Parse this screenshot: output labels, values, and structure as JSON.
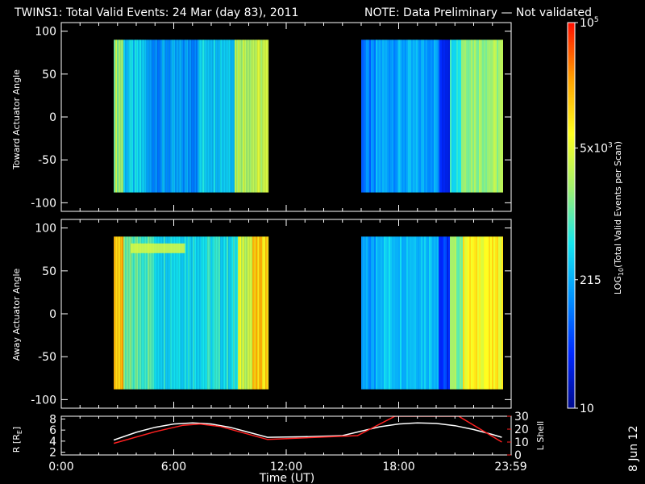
{
  "title": {
    "main": "TWINS1: Total Valid Events: 24 Mar (day  83), 2011",
    "note": "NOTE: Data Preliminary — Not validated",
    "note_color": "#ff2020"
  },
  "stamp": "8 Jun 12",
  "chart_data": [
    {
      "type": "heatmap",
      "name": "toward-panel",
      "ylabel": "Toward Actuator Angle",
      "ylim": [
        -110,
        110
      ],
      "yticks": [
        100,
        50,
        0,
        -50,
        -100
      ],
      "x_units": "hours",
      "data_blocks": [
        {
          "x_start": 2.8,
          "x_end": 11.0,
          "y_min": -88,
          "y_max": 90,
          "profile": "toward1"
        },
        {
          "x_start": 16.0,
          "x_end": 23.5,
          "y_min": -88,
          "y_max": 90,
          "profile": "toward2"
        }
      ]
    },
    {
      "type": "heatmap",
      "name": "away-panel",
      "ylabel": "Away Actuator Angle",
      "ylim": [
        -110,
        110
      ],
      "yticks": [
        100,
        50,
        0,
        -50,
        -100
      ],
      "x_units": "hours",
      "data_blocks": [
        {
          "x_start": 2.8,
          "x_end": 11.0,
          "y_min": -88,
          "y_max": 90,
          "profile": "away1"
        },
        {
          "x_start": 16.0,
          "x_end": 23.5,
          "y_min": -88,
          "y_max": 90,
          "profile": "away2"
        }
      ]
    },
    {
      "type": "line",
      "name": "orbit-panel",
      "xlabel": "Time (UT)",
      "xlim": [
        0,
        24
      ],
      "xticks": [
        "0:00",
        "6:00",
        "12:00",
        "18:00",
        "23:59"
      ],
      "xtick_values": [
        0,
        6,
        12,
        18,
        23.98
      ],
      "ylabel_left": "R [R",
      "ylabel_left_sub": "E",
      "ylabel_left_end": "]",
      "yticks_left": [
        8,
        6,
        4,
        2
      ],
      "ylim_left": [
        1.5,
        8.5
      ],
      "ylabel_right": "L Shell",
      "yticks_right": [
        30,
        20,
        10,
        0
      ],
      "ylim_right": [
        0,
        30
      ],
      "series": [
        {
          "color": "#ffffff",
          "x": [
            2.8,
            4,
            5,
            6,
            7,
            8,
            9,
            10,
            11,
            13,
            15,
            16,
            17,
            18,
            19,
            20,
            21,
            22,
            23,
            23.5
          ],
          "y": [
            4.2,
            5.6,
            6.5,
            7.1,
            7.3,
            7.1,
            6.5,
            5.6,
            4.7,
            4.8,
            5.0,
            5.8,
            6.6,
            7.1,
            7.3,
            7.2,
            6.8,
            6.1,
            5.2,
            4.7
          ]
        },
        {
          "color": "#ff2020",
          "axis": "right",
          "x": [
            2.8,
            5.0,
            6.5,
            7.4,
            8.5,
            11.0,
            15.8,
            17.8,
            21.2,
            23.5
          ],
          "y": [
            9,
            18,
            23,
            24,
            22,
            12,
            15,
            30,
            30,
            10
          ]
        }
      ]
    }
  ],
  "colorbar": {
    "label": "LOG",
    "label_sub": "10",
    "label_rest": "(Total Valid Events per Scan)",
    "ticks": [
      {
        "base": "10",
        "exp": "5",
        "value": 100000
      },
      {
        "base": "5x10",
        "exp": "3",
        "value": 5000
      },
      {
        "base": "215",
        "exp": "",
        "value": 215
      },
      {
        "base": "10",
        "exp": "",
        "value": 10
      }
    ],
    "vmin": 10,
    "vmax": 100000,
    "colors": [
      "#000a8c",
      "#0028ff",
      "#0090ff",
      "#14e6ee",
      "#a0f070",
      "#ffff20",
      "#ffa000",
      "#ff1000"
    ]
  }
}
